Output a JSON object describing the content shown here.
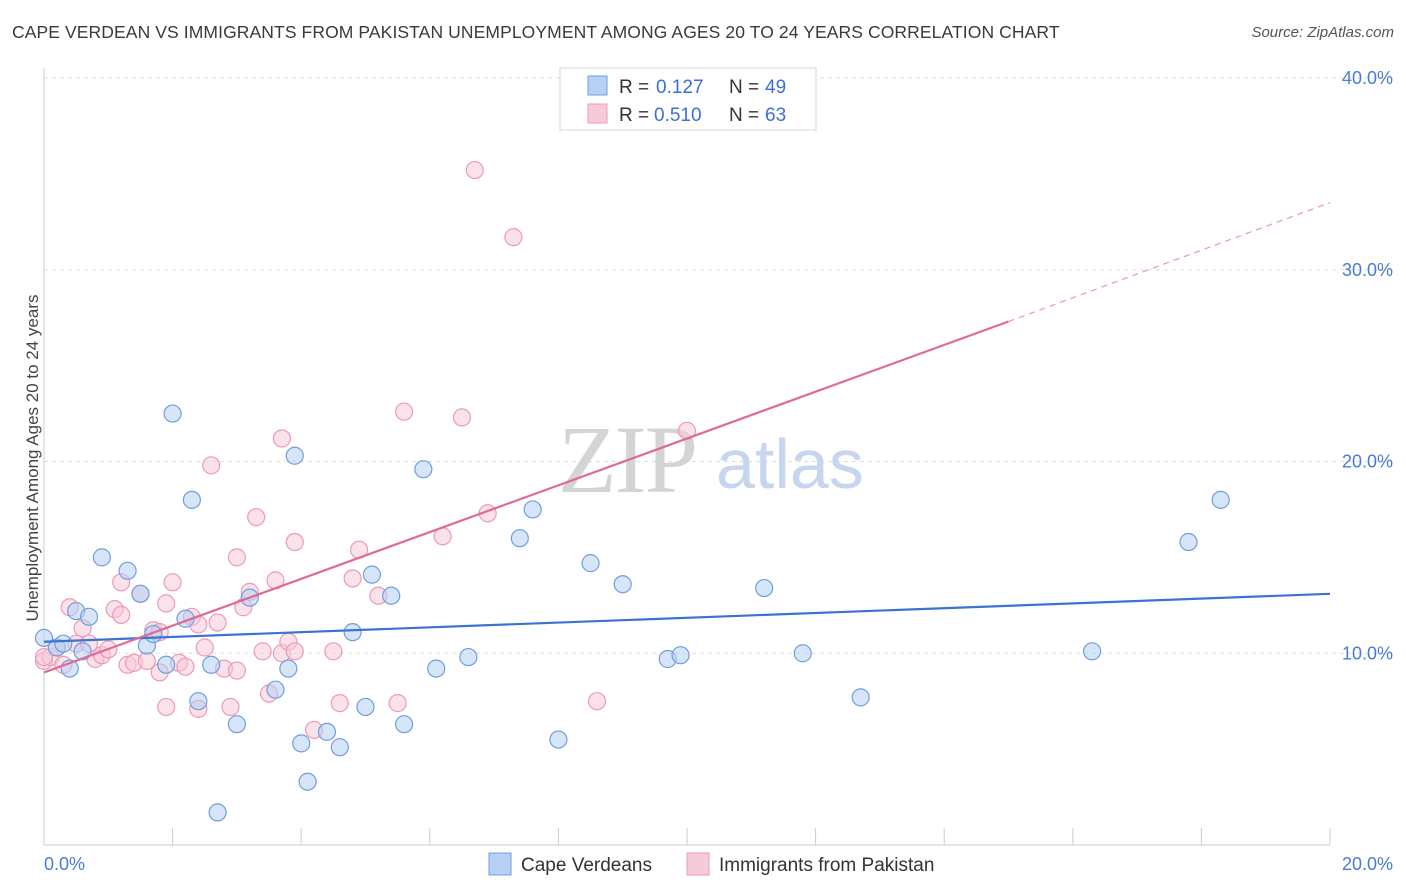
{
  "title": "CAPE VERDEAN VS IMMIGRANTS FROM PAKISTAN UNEMPLOYMENT AMONG AGES 20 TO 24 YEARS CORRELATION CHART",
  "source": "Source: ZipAtlas.com",
  "watermark": {
    "zip": "ZIP",
    "atlas": "atlas"
  },
  "colors": {
    "blue_fill": "#b7d0f3",
    "blue_stroke": "#6f9fe0",
    "blue_line": "#3a74d0",
    "pink_fill": "#f8c9d8",
    "pink_stroke": "#ec9bb6",
    "pink_line": "#e06a94",
    "grid": "#dddddd",
    "tick_text": "#4a7bd0"
  },
  "legend": {
    "rows": [
      {
        "r_label": "R =",
        "r_value": "0.127",
        "n_label": "N =",
        "n_value": "49"
      },
      {
        "r_label": "R =",
        "r_value": "0.510",
        "n_label": "N =",
        "n_value": "63"
      }
    ]
  },
  "chart_data": {
    "type": "scatter",
    "title": "CAPE VERDEAN VS IMMIGRANTS FROM PAKISTAN UNEMPLOYMENT AMONG AGES 20 TO 24 YEARS CORRELATION CHART",
    "xlabel": "",
    "ylabel": "Unemployment Among Ages 20 to 24 years",
    "xlim": [
      0,
      20
    ],
    "ylim": [
      0,
      40
    ],
    "x_tick_labels": [
      "0.0%",
      "20.0%"
    ],
    "y_ticks": [
      10,
      20,
      30,
      40
    ],
    "y_tick_labels": [
      "10.0%",
      "20.0%",
      "30.0%",
      "40.0%"
    ],
    "grid": true,
    "legend_position": "top-center",
    "series": [
      {
        "name": "Cape Verdeans",
        "r": 0.127,
        "n": 49,
        "trend": {
          "x": [
            0,
            20
          ],
          "y": [
            10.6,
            13.1
          ]
        },
        "points": [
          [
            0.0,
            10.8
          ],
          [
            0.2,
            10.3
          ],
          [
            0.3,
            10.5
          ],
          [
            0.4,
            9.2
          ],
          [
            0.5,
            12.2
          ],
          [
            0.6,
            10.1
          ],
          [
            0.7,
            11.9
          ],
          [
            0.9,
            15.0
          ],
          [
            1.3,
            14.3
          ],
          [
            1.5,
            13.1
          ],
          [
            1.6,
            10.4
          ],
          [
            1.7,
            11.0
          ],
          [
            1.9,
            9.4
          ],
          [
            2.0,
            22.5
          ],
          [
            2.2,
            11.8
          ],
          [
            2.3,
            18.0
          ],
          [
            2.4,
            7.5
          ],
          [
            2.6,
            9.4
          ],
          [
            2.7,
            1.7
          ],
          [
            3.0,
            6.3
          ],
          [
            3.2,
            12.9
          ],
          [
            3.6,
            8.1
          ],
          [
            3.8,
            9.2
          ],
          [
            3.9,
            20.3
          ],
          [
            4.0,
            5.3
          ],
          [
            4.1,
            3.3
          ],
          [
            4.4,
            5.9
          ],
          [
            4.6,
            5.1
          ],
          [
            4.8,
            11.1
          ],
          [
            5.0,
            7.2
          ],
          [
            5.1,
            14.1
          ],
          [
            5.4,
            13.0
          ],
          [
            5.6,
            6.3
          ],
          [
            5.9,
            19.6
          ],
          [
            6.1,
            9.2
          ],
          [
            6.6,
            9.8
          ],
          [
            7.4,
            16.0
          ],
          [
            7.6,
            17.5
          ],
          [
            8.0,
            5.5
          ],
          [
            8.5,
            14.7
          ],
          [
            9.0,
            13.6
          ],
          [
            9.7,
            9.7
          ],
          [
            9.9,
            9.9
          ],
          [
            11.2,
            13.4
          ],
          [
            11.8,
            10.0
          ],
          [
            12.7,
            7.7
          ],
          [
            16.3,
            10.1
          ],
          [
            17.8,
            15.8
          ],
          [
            18.3,
            18.0
          ]
        ]
      },
      {
        "name": "Immigrants from Pakistan",
        "r": 0.51,
        "n": 63,
        "trend": {
          "x": [
            0,
            15
          ],
          "y": [
            9.0,
            27.3
          ]
        },
        "trend_dashed": {
          "x": [
            15,
            20
          ],
          "y": [
            27.3,
            33.5
          ]
        },
        "points": [
          [
            0.0,
            9.6
          ],
          [
            0.1,
            9.8
          ],
          [
            0.2,
            10.3
          ],
          [
            0.3,
            9.4
          ],
          [
            0.4,
            12.4
          ],
          [
            0.5,
            10.5
          ],
          [
            0.6,
            11.3
          ],
          [
            0.7,
            10.5
          ],
          [
            0.8,
            9.7
          ],
          [
            0.9,
            9.9
          ],
          [
            1.0,
            10.2
          ],
          [
            1.1,
            12.3
          ],
          [
            1.2,
            13.7
          ],
          [
            1.2,
            12.0
          ],
          [
            1.3,
            9.4
          ],
          [
            1.4,
            9.5
          ],
          [
            1.5,
            13.1
          ],
          [
            1.6,
            9.6
          ],
          [
            1.7,
            11.2
          ],
          [
            1.8,
            9.0
          ],
          [
            1.8,
            11.1
          ],
          [
            1.9,
            12.6
          ],
          [
            1.9,
            7.2
          ],
          [
            2.0,
            13.7
          ],
          [
            2.1,
            9.5
          ],
          [
            2.2,
            9.3
          ],
          [
            2.3,
            11.9
          ],
          [
            2.4,
            7.1
          ],
          [
            2.4,
            11.5
          ],
          [
            2.5,
            10.3
          ],
          [
            2.6,
            19.8
          ],
          [
            2.7,
            11.6
          ],
          [
            2.8,
            9.2
          ],
          [
            2.9,
            7.2
          ],
          [
            3.0,
            15.0
          ],
          [
            3.0,
            9.1
          ],
          [
            3.1,
            12.4
          ],
          [
            3.2,
            13.2
          ],
          [
            3.3,
            17.1
          ],
          [
            3.4,
            10.1
          ],
          [
            3.5,
            7.9
          ],
          [
            3.6,
            13.8
          ],
          [
            3.7,
            10.0
          ],
          [
            3.7,
            21.2
          ],
          [
            3.8,
            10.6
          ],
          [
            3.9,
            10.1
          ],
          [
            3.9,
            15.8
          ],
          [
            4.2,
            6.0
          ],
          [
            4.5,
            10.1
          ],
          [
            4.6,
            7.4
          ],
          [
            4.8,
            13.9
          ],
          [
            4.9,
            15.4
          ],
          [
            5.2,
            13.0
          ],
          [
            5.5,
            7.4
          ],
          [
            5.6,
            22.6
          ],
          [
            6.2,
            16.1
          ],
          [
            6.5,
            22.3
          ],
          [
            6.7,
            35.2
          ],
          [
            6.9,
            17.3
          ],
          [
            7.3,
            31.7
          ],
          [
            8.6,
            7.5
          ],
          [
            10.0,
            21.6
          ],
          [
            0.0,
            9.8
          ]
        ]
      }
    ],
    "bottom_legend": [
      "Cape Verdeans",
      "Immigrants from Pakistan"
    ]
  }
}
